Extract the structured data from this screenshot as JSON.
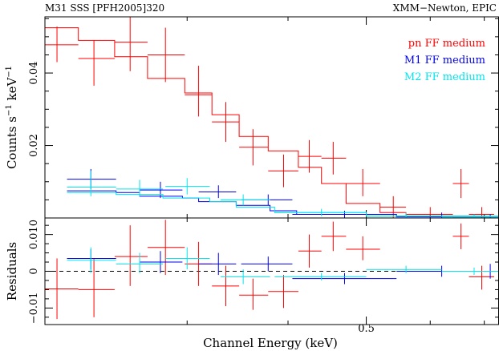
{
  "header": {
    "left": "M31 SSS [PFH2005]320",
    "right": "XMM−Newton, EPIC"
  },
  "colors": {
    "pn": "#ff0000",
    "m1": "#0000ee",
    "m2": "#00e5ee",
    "axis": "#000000"
  },
  "chart_data": [
    {
      "type": "line",
      "panel": "spectrum",
      "xlabel": "Channel Energy (keV)",
      "ylabel_parts": [
        "Counts s",
        "−1",
        " keV",
        "−1"
      ],
      "x_scale": "log",
      "xlim": [
        0.2,
        0.73
      ],
      "ylim": [
        0.0,
        0.0555
      ],
      "x_ticks": [
        0.5
      ],
      "x_tick_labels": [
        "0.5"
      ],
      "x_minor_ticks": [
        0.3,
        0.4,
        0.6,
        0.7
      ],
      "y_ticks": [
        0.02,
        0.04
      ],
      "y_tick_labels": [
        "0.02",
        "0.04"
      ],
      "y_minor_ticks": [
        0.005,
        0.01,
        0.015,
        0.025,
        0.03,
        0.035,
        0.045,
        0.05,
        0.055
      ],
      "legend_position": "top-right",
      "series": [
        {
          "name": "pn FF medium",
          "color_key": "pn",
          "data": [
            {
              "x": 0.207,
              "xlo": 0.2,
              "xhi": 0.22,
              "y": 0.0478,
              "ylo": 0.043,
              "yhi": 0.0528
            },
            {
              "x": 0.23,
              "xlo": 0.22,
              "xhi": 0.244,
              "y": 0.044,
              "ylo": 0.0365,
              "yhi": 0.049
            },
            {
              "x": 0.255,
              "xlo": 0.244,
              "xhi": 0.268,
              "y": 0.0485,
              "ylo": 0.0405,
              "yhi": 0.0565
            },
            {
              "x": 0.282,
              "xlo": 0.268,
              "xhi": 0.298,
              "y": 0.045,
              "ylo": 0.0375,
              "yhi": 0.0525
            },
            {
              "x": 0.31,
              "xlo": 0.298,
              "xhi": 0.322,
              "y": 0.034,
              "ylo": 0.028,
              "yhi": 0.042
            },
            {
              "x": 0.335,
              "xlo": 0.322,
              "xhi": 0.348,
              "y": 0.0265,
              "ylo": 0.021,
              "yhi": 0.032
            },
            {
              "x": 0.362,
              "xlo": 0.348,
              "xhi": 0.378,
              "y": 0.0195,
              "ylo": 0.0145,
              "yhi": 0.0245
            },
            {
              "x": 0.395,
              "xlo": 0.378,
              "xhi": 0.412,
              "y": 0.013,
              "ylo": 0.0085,
              "yhi": 0.0175
            },
            {
              "x": 0.425,
              "xlo": 0.412,
              "xhi": 0.44,
              "y": 0.017,
              "ylo": 0.0125,
              "yhi": 0.0215
            },
            {
              "x": 0.455,
              "xlo": 0.44,
              "xhi": 0.472,
              "y": 0.0165,
              "ylo": 0.012,
              "yhi": 0.021
            },
            {
              "x": 0.495,
              "xlo": 0.472,
              "xhi": 0.52,
              "y": 0.0095,
              "ylo": 0.006,
              "yhi": 0.0135
            },
            {
              "x": 0.54,
              "xlo": 0.52,
              "xhi": 0.56,
              "y": 0.003,
              "ylo": 0.0,
              "yhi": 0.006
            },
            {
              "x": 0.6,
              "xlo": 0.56,
              "xhi": 0.64,
              "y": 0.001,
              "ylo": 0.0,
              "yhi": 0.003
            },
            {
              "x": 0.655,
              "xlo": 0.64,
              "xhi": 0.67,
              "y": 0.0095,
              "ylo": 0.0055,
              "yhi": 0.0135
            },
            {
              "x": 0.695,
              "xlo": 0.67,
              "xhi": 0.72,
              "y": 0.001,
              "ylo": 0.0,
              "yhi": 0.003
            }
          ],
          "model": [
            {
              "xlo": 0.2,
              "xhi": 0.22,
              "y": 0.0525
            },
            {
              "xlo": 0.22,
              "xhi": 0.244,
              "y": 0.049
            },
            {
              "xlo": 0.244,
              "xhi": 0.268,
              "y": 0.0445
            },
            {
              "xlo": 0.268,
              "xhi": 0.298,
              "y": 0.0385
            },
            {
              "xlo": 0.298,
              "xhi": 0.322,
              "y": 0.0345
            },
            {
              "xlo": 0.322,
              "xhi": 0.348,
              "y": 0.0285
            },
            {
              "xlo": 0.348,
              "xhi": 0.378,
              "y": 0.0225
            },
            {
              "xlo": 0.378,
              "xhi": 0.412,
              "y": 0.0185
            },
            {
              "xlo": 0.412,
              "xhi": 0.44,
              "y": 0.014
            },
            {
              "xlo": 0.44,
              "xhi": 0.472,
              "y": 0.0095
            },
            {
              "xlo": 0.472,
              "xhi": 0.52,
              "y": 0.004
            },
            {
              "xlo": 0.52,
              "xhi": 0.56,
              "y": 0.0015
            },
            {
              "xlo": 0.56,
              "xhi": 0.64,
              "y": 0.0005
            },
            {
              "xlo": 0.64,
              "xhi": 0.73,
              "y": 0.0003
            }
          ]
        },
        {
          "name": "M1 FF medium",
          "color_key": "m1",
          "data": [
            {
              "x": 0.228,
              "xlo": 0.213,
              "xhi": 0.245,
              "y": 0.0107,
              "ylo": 0.008,
              "yhi": 0.0135
            },
            {
              "x": 0.278,
              "xlo": 0.262,
              "xhi": 0.296,
              "y": 0.0077,
              "ylo": 0.0055,
              "yhi": 0.01
            },
            {
              "x": 0.328,
              "xlo": 0.31,
              "xhi": 0.345,
              "y": 0.0072,
              "ylo": 0.0055,
              "yhi": 0.009
            },
            {
              "x": 0.378,
              "xlo": 0.35,
              "xhi": 0.405,
              "y": 0.005,
              "ylo": 0.0035,
              "yhi": 0.0065
            },
            {
              "x": 0.47,
              "xlo": 0.405,
              "xhi": 0.545,
              "y": 0.001,
              "ylo": 0.0,
              "yhi": 0.002
            },
            {
              "x": 0.62,
              "xlo": 0.545,
              "xhi": 0.7,
              "y": 0.0005,
              "ylo": 0.0,
              "yhi": 0.0015
            },
            {
              "x": 0.712,
              "xlo": 0.7,
              "xhi": 0.73,
              "y": 0.0,
              "ylo": 0.0,
              "yhi": 0.001
            }
          ],
          "model": [
            {
              "xlo": 0.213,
              "xhi": 0.245,
              "y": 0.0075
            },
            {
              "xlo": 0.245,
              "xhi": 0.262,
              "y": 0.007
            },
            {
              "xlo": 0.262,
              "xhi": 0.296,
              "y": 0.006
            },
            {
              "xlo": 0.296,
              "xhi": 0.31,
              "y": 0.0055
            },
            {
              "xlo": 0.31,
              "xhi": 0.345,
              "y": 0.0045
            },
            {
              "xlo": 0.345,
              "xhi": 0.38,
              "y": 0.0035
            },
            {
              "xlo": 0.38,
              "xhi": 0.41,
              "y": 0.002
            },
            {
              "xlo": 0.41,
              "xhi": 0.545,
              "y": 0.001
            },
            {
              "xlo": 0.545,
              "xhi": 0.73,
              "y": 0.0003
            }
          ]
        },
        {
          "name": "M2 FF medium",
          "color_key": "m2",
          "data": [
            {
              "x": 0.228,
              "xlo": 0.213,
              "xhi": 0.245,
              "y": 0.0085,
              "ylo": 0.006,
              "yhi": 0.013
            },
            {
              "x": 0.262,
              "xlo": 0.245,
              "xhi": 0.28,
              "y": 0.008,
              "ylo": 0.006,
              "yhi": 0.0105
            },
            {
              "x": 0.3,
              "xlo": 0.282,
              "xhi": 0.32,
              "y": 0.0087,
              "ylo": 0.0065,
              "yhi": 0.011
            },
            {
              "x": 0.352,
              "xlo": 0.33,
              "xhi": 0.38,
              "y": 0.005,
              "ylo": 0.0035,
              "yhi": 0.0065
            },
            {
              "x": 0.44,
              "xlo": 0.385,
              "xhi": 0.5,
              "y": 0.0015,
              "ylo": 0.0005,
              "yhi": 0.0025
            },
            {
              "x": 0.56,
              "xlo": 0.5,
              "xhi": 0.62,
              "y": 0.0005,
              "ylo": 0.0,
              "yhi": 0.0015
            },
            {
              "x": 0.68,
              "xlo": 0.62,
              "xhi": 0.73,
              "y": 0.0003,
              "ylo": 0.0,
              "yhi": 0.001
            }
          ],
          "model": [
            {
              "xlo": 0.213,
              "xhi": 0.245,
              "y": 0.007
            },
            {
              "xlo": 0.245,
              "xhi": 0.28,
              "y": 0.0065
            },
            {
              "xlo": 0.28,
              "xhi": 0.32,
              "y": 0.0055
            },
            {
              "xlo": 0.32,
              "xhi": 0.345,
              "y": 0.0045
            },
            {
              "xlo": 0.345,
              "xhi": 0.385,
              "y": 0.003
            },
            {
              "xlo": 0.385,
              "xhi": 0.5,
              "y": 0.0015
            },
            {
              "xlo": 0.5,
              "xhi": 0.73,
              "y": 0.0005
            }
          ]
        }
      ]
    },
    {
      "type": "scatter",
      "panel": "residuals",
      "xlabel": "Channel Energy (keV)",
      "ylabel": "Residuals",
      "x_scale": "log",
      "xlim": [
        0.2,
        0.73
      ],
      "ylim": [
        -0.0145,
        0.0145
      ],
      "y_ticks": [
        -0.01,
        0,
        0.01
      ],
      "y_tick_labels": [
        "−0.01",
        "0",
        "0.010"
      ],
      "y_minor_ticks": [
        -0.0125,
        -0.0075,
        -0.005,
        -0.0025,
        0.0025,
        0.005,
        0.0075,
        0.0125
      ],
      "zero_line": "dashed",
      "series": [
        {
          "name": "pn FF medium",
          "color_key": "pn",
          "data": [
            {
              "x": 0.207,
              "xlo": 0.2,
              "xhi": 0.22,
              "y": -0.0048,
              "ylo": -0.013,
              "yhi": 0.0035
            },
            {
              "x": 0.23,
              "xlo": 0.22,
              "xhi": 0.244,
              "y": -0.005,
              "ylo": -0.0125,
              "yhi": 0.0035
            },
            {
              "x": 0.255,
              "xlo": 0.244,
              "xhi": 0.268,
              "y": 0.004,
              "ylo": -0.004,
              "yhi": 0.0125
            },
            {
              "x": 0.282,
              "xlo": 0.268,
              "xhi": 0.298,
              "y": 0.0065,
              "ylo": -0.001,
              "yhi": 0.014
            },
            {
              "x": 0.31,
              "xlo": 0.298,
              "xhi": 0.322,
              "y": 0.002,
              "ylo": -0.004,
              "yhi": 0.008
            },
            {
              "x": 0.335,
              "xlo": 0.322,
              "xhi": 0.348,
              "y": -0.004,
              "ylo": -0.0095,
              "yhi": 0.0015
            },
            {
              "x": 0.362,
              "xlo": 0.348,
              "xhi": 0.378,
              "y": -0.0065,
              "ylo": -0.0105,
              "yhi": -0.002
            },
            {
              "x": 0.395,
              "xlo": 0.378,
              "xhi": 0.412,
              "y": -0.0055,
              "ylo": -0.01,
              "yhi": -0.001
            },
            {
              "x": 0.425,
              "xlo": 0.412,
              "xhi": 0.44,
              "y": 0.0055,
              "ylo": 0.001,
              "yhi": 0.01
            },
            {
              "x": 0.455,
              "xlo": 0.44,
              "xhi": 0.472,
              "y": 0.0095,
              "ylo": 0.0055,
              "yhi": 0.0135
            },
            {
              "x": 0.495,
              "xlo": 0.472,
              "xhi": 0.52,
              "y": 0.006,
              "ylo": 0.003,
              "yhi": 0.0095
            },
            {
              "x": 0.655,
              "xlo": 0.64,
              "xhi": 0.67,
              "y": 0.0095,
              "ylo": 0.006,
              "yhi": 0.013
            },
            {
              "x": 0.695,
              "xlo": 0.67,
              "xhi": 0.72,
              "y": -0.0015,
              "ylo": -0.005,
              "yhi": 0.0015
            }
          ]
        },
        {
          "name": "M1 FF medium",
          "color_key": "m1",
          "data": [
            {
              "x": 0.228,
              "xlo": 0.213,
              "xhi": 0.245,
              "y": 0.0035,
              "ylo": 0.0005,
              "yhi": 0.006
            },
            {
              "x": 0.278,
              "xlo": 0.262,
              "xhi": 0.296,
              "y": 0.0025,
              "ylo": -0.0005,
              "yhi": 0.0055
            },
            {
              "x": 0.328,
              "xlo": 0.31,
              "xhi": 0.345,
              "y": 0.002,
              "ylo": -0.001,
              "yhi": 0.005
            },
            {
              "x": 0.378,
              "xlo": 0.35,
              "xhi": 0.405,
              "y": 0.002,
              "ylo": 0.0,
              "yhi": 0.004
            },
            {
              "x": 0.47,
              "xlo": 0.405,
              "xhi": 0.545,
              "y": -0.002,
              "ylo": -0.0035,
              "yhi": -0.0005
            },
            {
              "x": 0.62,
              "xlo": 0.545,
              "xhi": 0.7,
              "y": 0.0,
              "ylo": -0.0015,
              "yhi": 0.0015
            },
            {
              "x": 0.712,
              "xlo": 0.7,
              "xhi": 0.73,
              "y": 0.0,
              "ylo": -0.002,
              "yhi": 0.002
            }
          ]
        },
        {
          "name": "M2 FF medium",
          "color_key": "m2",
          "data": [
            {
              "x": 0.228,
              "xlo": 0.213,
              "xhi": 0.245,
              "y": 0.003,
              "ylo": -0.0005,
              "yhi": 0.0065
            },
            {
              "x": 0.262,
              "xlo": 0.245,
              "xhi": 0.28,
              "y": 0.002,
              "ylo": -0.0005,
              "yhi": 0.005
            },
            {
              "x": 0.3,
              "xlo": 0.282,
              "xhi": 0.32,
              "y": 0.0035,
              "ylo": 0.0005,
              "yhi": 0.0065
            },
            {
              "x": 0.352,
              "xlo": 0.33,
              "xhi": 0.38,
              "y": -0.0015,
              "ylo": -0.0035,
              "yhi": 0.0005
            },
            {
              "x": 0.44,
              "xlo": 0.385,
              "xhi": 0.5,
              "y": -0.0015,
              "ylo": -0.0025,
              "yhi": -0.0005
            },
            {
              "x": 0.56,
              "xlo": 0.5,
              "xhi": 0.62,
              "y": 0.0005,
              "ylo": -0.0005,
              "yhi": 0.0015
            },
            {
              "x": 0.68,
              "xlo": 0.62,
              "xhi": 0.73,
              "y": 0.0,
              "ylo": -0.001,
              "yhi": 0.001
            }
          ]
        }
      ]
    }
  ]
}
